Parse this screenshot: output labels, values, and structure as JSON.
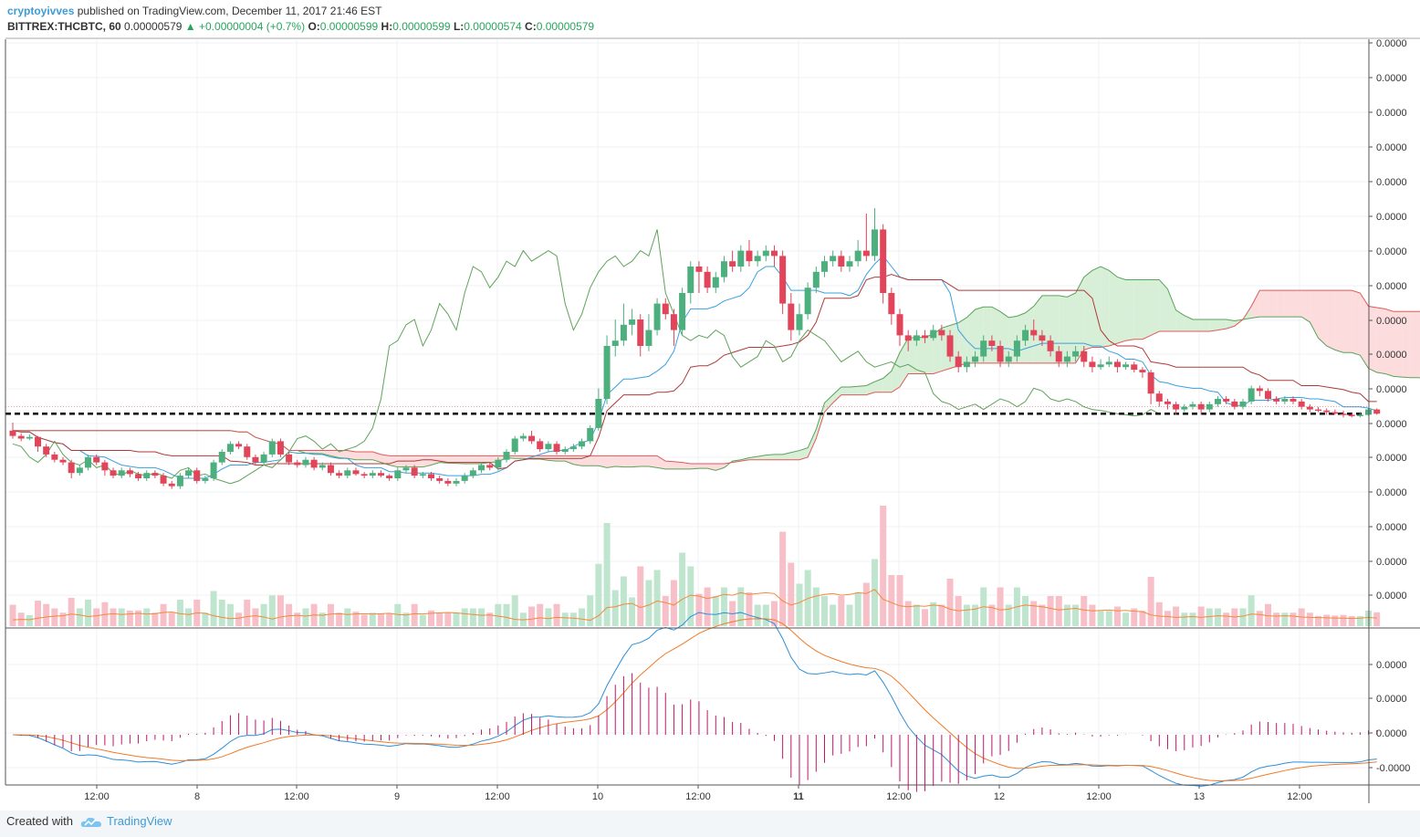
{
  "header": {
    "author": "cryptoyivves",
    "published_text": "published on TradingView.com, December 11, 2017 21:46 EST",
    "symbol": "BITTREX:THCBTC, 60",
    "price": "0.00000579",
    "change": "+0.00000004 (+0.7%)",
    "o_label": "O:",
    "o_value": "0.00000599",
    "h_label": "H:",
    "h_value": "0.00000599",
    "l_label": "L:",
    "l_value": "0.00000574",
    "c_label": "C:",
    "c_value": "0.00000579"
  },
  "footer": {
    "created_with": "Created with",
    "brand": "TradingView"
  },
  "colors": {
    "up": "#4caf7d",
    "down": "#e0455a",
    "tenkan": "#3aa0e0",
    "kijun": "#b03a3a",
    "chikou": "#5fa35a",
    "senkou_a": "#5aa35a",
    "senkou_b": "#e05a5a",
    "cloud_bull": "#d7eed7",
    "cloud_bear": "#fcdcdc",
    "vol_up": "#bfe5cf",
    "vol_down": "#f7c0c8",
    "vol_ma": "#f08a3c",
    "macd": "#2b8fd9",
    "signal": "#f07a28",
    "hist": "#c0156a"
  },
  "chart_data": {
    "type": "candlestick",
    "title": "",
    "yaxis_tick_labels": [
      "0.0000",
      "0.0000",
      "0.0000",
      "0.0000",
      "0.0000",
      "0.0000",
      "0.0000",
      "0.0000",
      "0.0000",
      "0.0000",
      "0.0000",
      "0.0000",
      "0.0000",
      "0.0000",
      "0.0000",
      "0.0000",
      "0.0000"
    ],
    "xaxis_tick_labels": [
      "12:00",
      "8",
      "12:00",
      "9",
      "12:00",
      "10",
      "12:00",
      "11",
      "12:00",
      "12",
      "12:00",
      "13",
      "12:00"
    ],
    "macd_tick_labels": [
      "0.0000",
      "0.0000",
      "0.0000",
      "-0.0000"
    ],
    "candles": [
      [
        6.4,
        6.3,
        6.55,
        6.25
      ],
      [
        6.3,
        6.25,
        6.35,
        6.2
      ],
      [
        6.25,
        6.28,
        6.33,
        6.22
      ],
      [
        6.28,
        6.1,
        6.3,
        6.0
      ],
      [
        6.1,
        5.95,
        6.15,
        5.9
      ],
      [
        5.95,
        5.85,
        6.0,
        5.8
      ],
      [
        5.85,
        5.8,
        5.9,
        5.75
      ],
      [
        5.8,
        5.6,
        5.85,
        5.5
      ],
      [
        5.6,
        5.7,
        5.75,
        5.55
      ],
      [
        5.7,
        5.9,
        5.95,
        5.65
      ],
      [
        5.9,
        5.8,
        5.95,
        5.75
      ],
      [
        5.8,
        5.65,
        5.85,
        5.55
      ],
      [
        5.65,
        5.55,
        5.7,
        5.5
      ],
      [
        5.55,
        5.65,
        5.7,
        5.5
      ],
      [
        5.65,
        5.58,
        5.7,
        5.52
      ],
      [
        5.58,
        5.5,
        5.62,
        5.45
      ],
      [
        5.5,
        5.6,
        5.65,
        5.45
      ],
      [
        5.6,
        5.55,
        5.65,
        5.5
      ],
      [
        5.55,
        5.4,
        5.6,
        5.35
      ],
      [
        5.4,
        5.35,
        5.45,
        5.3
      ],
      [
        5.35,
        5.55,
        5.6,
        5.3
      ],
      [
        5.55,
        5.65,
        5.7,
        5.5
      ],
      [
        5.65,
        5.45,
        5.7,
        5.4
      ],
      [
        5.45,
        5.5,
        5.55,
        5.4
      ],
      [
        5.5,
        5.8,
        5.85,
        5.45
      ],
      [
        5.8,
        6.0,
        6.05,
        5.75
      ],
      [
        6.0,
        6.15,
        6.2,
        5.95
      ],
      [
        6.15,
        6.1,
        6.2,
        6.05
      ],
      [
        6.1,
        5.9,
        6.15,
        5.85
      ],
      [
        5.9,
        5.8,
        5.95,
        5.75
      ],
      [
        5.8,
        5.95,
        6.0,
        5.75
      ],
      [
        5.95,
        6.2,
        6.25,
        5.9
      ],
      [
        6.2,
        5.95,
        6.25,
        5.9
      ],
      [
        5.95,
        5.8,
        6.0,
        5.75
      ],
      [
        5.8,
        5.75,
        5.85,
        5.7
      ],
      [
        5.75,
        5.85,
        5.9,
        5.7
      ],
      [
        5.85,
        5.7,
        5.9,
        5.65
      ],
      [
        5.7,
        5.75,
        5.8,
        5.65
      ],
      [
        5.75,
        5.6,
        5.8,
        5.55
      ],
      [
        5.6,
        5.55,
        5.65,
        5.5
      ],
      [
        5.55,
        5.65,
        5.7,
        5.5
      ],
      [
        5.65,
        5.58,
        5.7,
        5.55
      ],
      [
        5.58,
        5.55,
        5.62,
        5.5
      ],
      [
        5.55,
        5.6,
        5.65,
        5.5
      ],
      [
        5.6,
        5.55,
        5.65,
        5.52
      ],
      [
        5.55,
        5.5,
        5.58,
        5.45
      ],
      [
        5.5,
        5.65,
        5.7,
        5.45
      ],
      [
        5.65,
        5.7,
        5.75,
        5.6
      ],
      [
        5.7,
        5.55,
        5.75,
        5.5
      ],
      [
        5.55,
        5.58,
        5.62,
        5.5
      ],
      [
        5.58,
        5.5,
        5.62,
        5.45
      ],
      [
        5.5,
        5.45,
        5.55,
        5.4
      ],
      [
        5.45,
        5.4,
        5.5,
        5.35
      ],
      [
        5.4,
        5.45,
        5.5,
        5.35
      ],
      [
        5.45,
        5.55,
        5.6,
        5.4
      ],
      [
        5.55,
        5.65,
        5.7,
        5.5
      ],
      [
        5.65,
        5.75,
        5.8,
        5.6
      ],
      [
        5.75,
        5.7,
        5.8,
        5.65
      ],
      [
        5.7,
        5.85,
        5.9,
        5.65
      ],
      [
        5.85,
        6.0,
        6.05,
        5.8
      ],
      [
        6.0,
        6.25,
        6.3,
        5.95
      ],
      [
        6.25,
        6.3,
        6.35,
        6.2
      ],
      [
        6.3,
        6.2,
        6.4,
        6.15
      ],
      [
        6.2,
        6.05,
        6.25,
        6.0
      ],
      [
        6.05,
        6.15,
        6.2,
        6.0
      ],
      [
        6.15,
        6.0,
        6.2,
        5.95
      ],
      [
        6.0,
        6.05,
        6.1,
        5.95
      ],
      [
        6.05,
        6.1,
        6.15,
        6.0
      ],
      [
        6.1,
        6.2,
        6.25,
        6.05
      ],
      [
        6.2,
        6.45,
        6.5,
        6.15
      ],
      [
        6.45,
        7.0,
        7.2,
        6.4
      ],
      [
        7.0,
        8.0,
        8.2,
        6.9
      ],
      [
        8.0,
        8.1,
        8.5,
        7.8
      ],
      [
        8.1,
        8.4,
        8.8,
        8.0
      ],
      [
        8.4,
        8.5,
        8.7,
        8.2
      ],
      [
        8.5,
        8.0,
        8.6,
        7.8
      ],
      [
        8.0,
        8.3,
        8.6,
        7.9
      ],
      [
        8.3,
        8.8,
        8.9,
        8.2
      ],
      [
        8.8,
        8.6,
        8.9,
        8.5
      ],
      [
        8.6,
        8.3,
        8.7,
        8.0
      ],
      [
        8.3,
        9.0,
        9.1,
        8.2
      ],
      [
        9.0,
        9.5,
        9.6,
        8.8
      ],
      [
        9.5,
        9.4,
        9.6,
        9.0
      ],
      [
        9.4,
        9.1,
        9.5,
        9.0
      ],
      [
        9.1,
        9.3,
        9.4,
        9.0
      ],
      [
        9.3,
        9.6,
        9.7,
        9.2
      ],
      [
        9.6,
        9.5,
        9.8,
        9.4
      ],
      [
        9.5,
        9.8,
        9.9,
        9.4
      ],
      [
        9.8,
        9.6,
        10.0,
        9.5
      ],
      [
        9.6,
        9.7,
        9.8,
        9.5
      ],
      [
        9.7,
        9.8,
        9.9,
        9.6
      ],
      [
        9.8,
        9.7,
        9.9,
        9.5
      ],
      [
        9.7,
        8.8,
        9.8,
        8.6
      ],
      [
        8.8,
        8.3,
        9.0,
        8.1
      ],
      [
        8.3,
        8.6,
        8.8,
        8.2
      ],
      [
        8.6,
        9.1,
        9.2,
        8.5
      ],
      [
        9.1,
        9.4,
        9.5,
        9.0
      ],
      [
        9.4,
        9.6,
        9.7,
        9.3
      ],
      [
        9.6,
        9.7,
        9.8,
        9.5
      ],
      [
        9.7,
        9.5,
        9.8,
        9.4
      ],
      [
        9.5,
        9.6,
        9.7,
        9.4
      ],
      [
        9.6,
        9.8,
        10.0,
        9.5
      ],
      [
        9.8,
        9.7,
        10.5,
        9.6
      ],
      [
        9.7,
        10.2,
        10.6,
        9.6
      ],
      [
        10.2,
        9.0,
        10.3,
        8.8
      ],
      [
        9.0,
        8.6,
        9.1,
        8.4
      ],
      [
        8.6,
        8.2,
        8.7,
        8.0
      ],
      [
        8.2,
        8.1,
        8.3,
        7.9
      ],
      [
        8.1,
        8.2,
        8.3,
        8.0
      ],
      [
        8.2,
        8.15,
        8.3,
        8.05
      ],
      [
        8.15,
        8.3,
        8.4,
        8.1
      ],
      [
        8.3,
        8.2,
        8.4,
        8.1
      ],
      [
        8.2,
        7.8,
        8.3,
        7.7
      ],
      [
        7.8,
        7.6,
        7.9,
        7.5
      ],
      [
        7.6,
        7.7,
        7.8,
        7.5
      ],
      [
        7.7,
        7.8,
        7.9,
        7.6
      ],
      [
        7.8,
        8.1,
        8.2,
        7.7
      ],
      [
        8.1,
        8.0,
        8.2,
        7.9
      ],
      [
        8.0,
        7.7,
        8.1,
        7.6
      ],
      [
        7.7,
        7.8,
        7.9,
        7.6
      ],
      [
        7.8,
        8.1,
        8.2,
        7.7
      ],
      [
        8.1,
        8.3,
        8.4,
        8.0
      ],
      [
        8.3,
        8.2,
        8.5,
        8.1
      ],
      [
        8.2,
        8.1,
        8.3,
        8.0
      ],
      [
        8.1,
        7.9,
        8.2,
        7.8
      ],
      [
        7.9,
        7.7,
        8.0,
        7.6
      ],
      [
        7.7,
        7.8,
        7.9,
        7.6
      ],
      [
        7.8,
        7.9,
        8.0,
        7.7
      ],
      [
        7.9,
        7.7,
        8.0,
        7.6
      ],
      [
        7.7,
        7.6,
        7.8,
        7.5
      ],
      [
        7.6,
        7.65,
        7.75,
        7.55
      ],
      [
        7.65,
        7.7,
        7.8,
        7.6
      ],
      [
        7.7,
        7.6,
        7.75,
        7.5
      ],
      [
        7.6,
        7.65,
        7.7,
        7.55
      ],
      [
        7.65,
        7.55,
        7.7,
        7.5
      ],
      [
        7.55,
        7.5,
        7.6,
        7.4
      ],
      [
        7.5,
        7.1,
        7.55,
        6.9
      ],
      [
        7.1,
        6.95,
        7.15,
        6.85
      ],
      [
        6.95,
        6.9,
        7.0,
        6.8
      ],
      [
        6.9,
        6.8,
        6.95,
        6.7
      ],
      [
        6.8,
        6.85,
        6.9,
        6.75
      ],
      [
        6.85,
        6.9,
        6.95,
        6.8
      ],
      [
        6.9,
        6.8,
        6.95,
        6.7
      ],
      [
        6.8,
        6.9,
        6.95,
        6.75
      ],
      [
        6.9,
        7.0,
        7.05,
        6.85
      ],
      [
        7.0,
        6.95,
        7.05,
        6.9
      ],
      [
        6.95,
        6.85,
        7.0,
        6.8
      ],
      [
        6.85,
        6.95,
        7.0,
        6.8
      ],
      [
        6.95,
        7.2,
        7.25,
        6.9
      ],
      [
        7.2,
        7.15,
        7.25,
        7.05
      ],
      [
        7.15,
        7.0,
        7.2,
        6.95
      ],
      [
        7.0,
        6.95,
        7.05,
        6.9
      ],
      [
        6.95,
        7.0,
        7.05,
        6.9
      ],
      [
        7.0,
        6.95,
        7.05,
        6.9
      ],
      [
        6.95,
        6.85,
        7.0,
        6.8
      ],
      [
        6.85,
        6.8,
        6.9,
        6.75
      ],
      [
        6.8,
        6.78,
        6.85,
        6.75
      ],
      [
        6.78,
        6.75,
        6.82,
        6.7
      ],
      [
        6.75,
        6.72,
        6.8,
        6.7
      ],
      [
        6.72,
        6.7,
        6.78,
        6.65
      ],
      [
        6.7,
        6.68,
        6.75,
        6.65
      ],
      [
        6.68,
        6.7,
        6.75,
        6.65
      ],
      [
        6.7,
        6.8,
        6.82,
        6.68
      ],
      [
        6.8,
        6.72,
        6.82,
        6.7
      ]
    ]
  }
}
